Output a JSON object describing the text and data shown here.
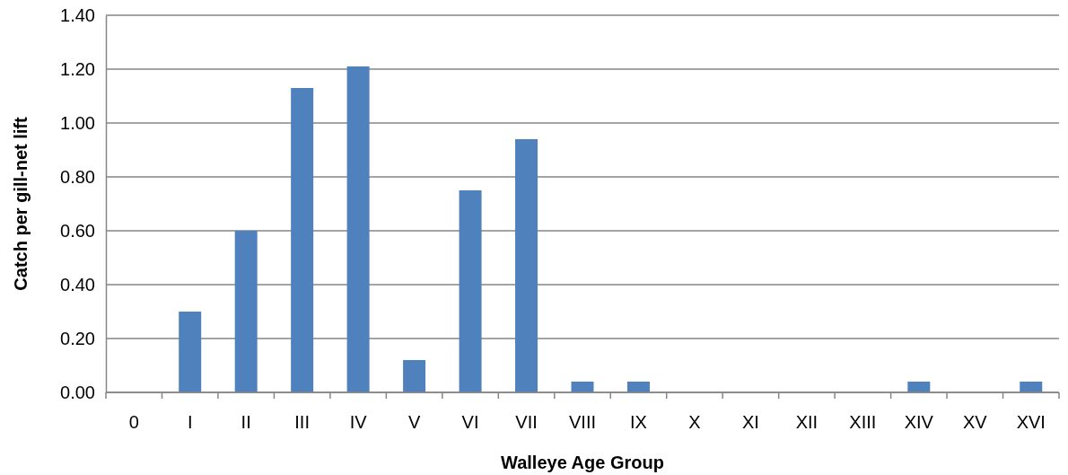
{
  "chart_data": {
    "type": "bar",
    "xlabel": "Walleye Age Group",
    "ylabel": "Catch per gill-net lift",
    "categories": [
      "0",
      "I",
      "II",
      "III",
      "IV",
      "V",
      "VI",
      "VII",
      "VIII",
      "IX",
      "X",
      "XI",
      "XII",
      "XIII",
      "XIV",
      "XV",
      "XVI"
    ],
    "values": [
      0,
      0.3,
      0.6,
      1.13,
      1.21,
      0.12,
      0.75,
      0.94,
      0.04,
      0.04,
      0,
      0,
      0,
      0,
      0.04,
      0,
      0.04
    ],
    "color": "#4f81bd",
    "ylim": [
      0,
      1.4
    ],
    "yticks": [
      {
        "value": 0,
        "label": "0.00"
      },
      {
        "value": 0.2,
        "label": "0.20"
      },
      {
        "value": 0.4,
        "label": "0.40"
      },
      {
        "value": 0.6,
        "label": "0.60"
      },
      {
        "value": 0.8,
        "label": "0.80"
      },
      {
        "value": 1.0,
        "label": "1.00"
      },
      {
        "value": 1.2,
        "label": "1.20"
      },
      {
        "value": 1.4,
        "label": "1.40"
      }
    ],
    "grid": "y"
  }
}
